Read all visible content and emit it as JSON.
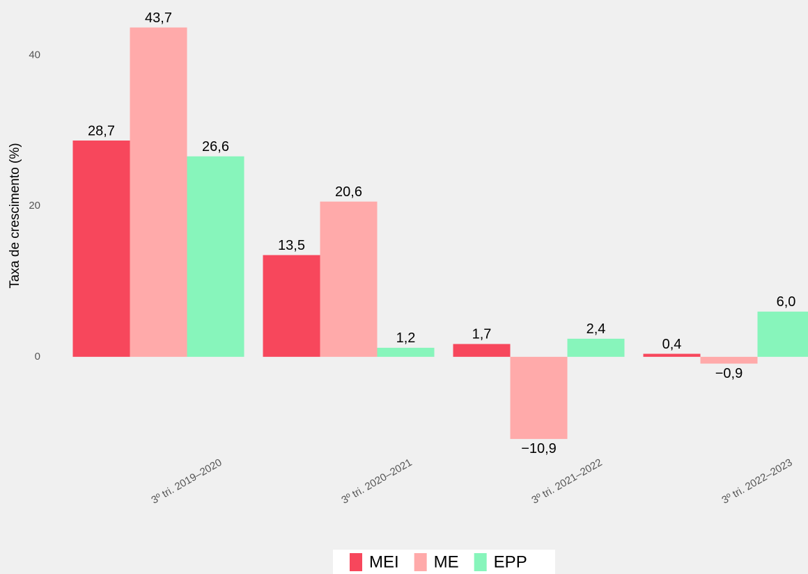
{
  "chart_data": {
    "type": "bar",
    "y_label": "Taxa de crescimento (%)",
    "categories": [
      "3º tri. 2019–2020",
      "3º tri. 2020–2021",
      "3º tri. 2021–2022",
      "3º tri. 2022–2023"
    ],
    "series": [
      {
        "name": "MEI",
        "color": "#f7475c",
        "values": [
          28.7,
          13.5,
          1.7,
          0.4
        ],
        "value_labels": [
          "28,7",
          "13,5",
          "1,7",
          "0,4"
        ]
      },
      {
        "name": "ME",
        "color": "#ffaaaa",
        "values": [
          43.7,
          20.6,
          -10.9,
          -0.9
        ],
        "value_labels": [
          "43,7",
          "20,6",
          "−10,9",
          "−0,9"
        ]
      },
      {
        "name": "EPP",
        "color": "#87f5bb",
        "values": [
          26.6,
          1.2,
          2.4,
          6.0
        ],
        "value_labels": [
          "26,6",
          "1,2",
          "2,4",
          "6,0"
        ]
      }
    ],
    "ylim": [
      -12.2,
      45.5
    ],
    "yticks": [
      0,
      20,
      40
    ],
    "grid": false,
    "legend": "bottom"
  }
}
